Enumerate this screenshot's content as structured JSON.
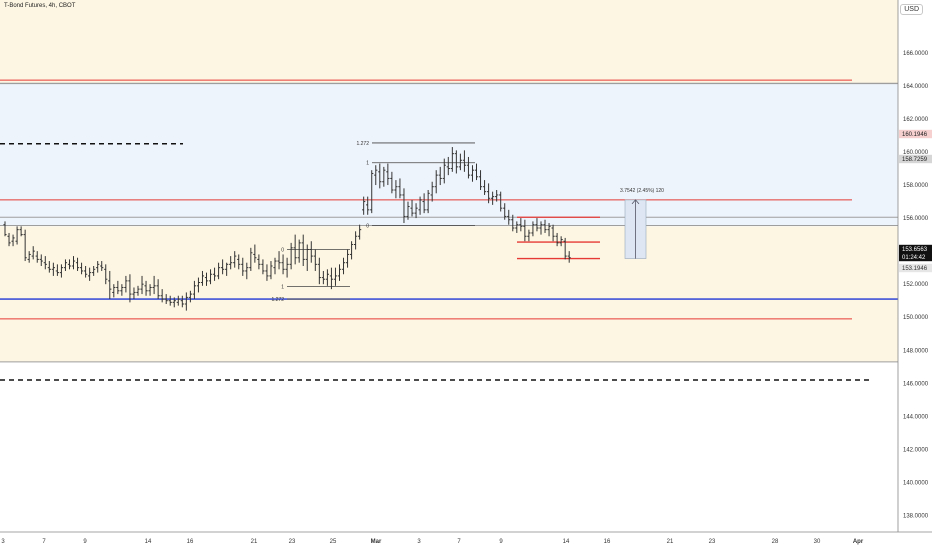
{
  "header": {
    "title": "T-Bond Futures, 4h, CBOT"
  },
  "currency_button": "USD",
  "colors": {
    "zone_cream": "#fdf6e3",
    "zone_blue": "#eef4fb",
    "red_line": "#e53935",
    "blue_line": "#1e36d6",
    "grey_line": "#9e9e9e",
    "candle": "#333333",
    "measure_fill": "#dde6f2"
  },
  "chart_data": {
    "type": "bar",
    "instrument": "T-Bond Futures",
    "interval": "4h",
    "exchange": "CBOT",
    "grid": false,
    "y_axis": {
      "position": "right",
      "range": [
        137,
        169.2
      ],
      "ticks": [
        "166.0000",
        "164.0000",
        "162.0000",
        "160.0000",
        "158.0000",
        "156.0000",
        "154.0000",
        "152.0000",
        "150.0000",
        "148.0000",
        "146.0000",
        "144.0000",
        "142.0000",
        "140.0000",
        "138.0000"
      ],
      "badges": [
        {
          "label": "160.1946",
          "value": 160.1946,
          "style": "pink"
        },
        {
          "label": "158.7259",
          "value": 158.7259,
          "style": "grey"
        },
        {
          "label": "153.6563",
          "value": 153.6563,
          "style": "dark"
        },
        {
          "label": "01:24:42",
          "value": 153.0,
          "style": "dark"
        },
        {
          "label": "153.1946",
          "value": 153.1946,
          "style": "light"
        }
      ]
    },
    "x_axis": {
      "ticks": [
        "3",
        "7",
        "9",
        "14",
        "16",
        "21",
        "23",
        "25",
        "Mar",
        "3",
        "7",
        "9",
        "14",
        "16",
        "21",
        "23",
        "28",
        "30",
        "Apr"
      ],
      "bold": [
        "Mar",
        "Apr"
      ]
    },
    "zones": [
      {
        "name": "upper-cream",
        "from": 164.15,
        "to": 169.2,
        "color": "cream"
      },
      {
        "name": "blue-band",
        "from": 155.5,
        "to": 164.15,
        "color": "blue"
      },
      {
        "name": "lower-cream",
        "from": 147.3,
        "to": 155.5,
        "color": "cream"
      }
    ],
    "levels": [
      {
        "value": 164.35,
        "color": "red"
      },
      {
        "value": 164.15,
        "color": "grey"
      },
      {
        "value": 157.1,
        "color": "red"
      },
      {
        "value": 156.05,
        "color": "grey"
      },
      {
        "value": 155.55,
        "color": "grey"
      },
      {
        "value": 151.1,
        "color": "blue"
      },
      {
        "value": 149.9,
        "color": "red"
      },
      {
        "value": 147.3,
        "color": "grey"
      }
    ],
    "dashed_levels": [
      {
        "value": 160.5,
        "x_end": 183
      },
      {
        "value": 146.2,
        "x_end": 870
      }
    ],
    "fib_labels": [
      "1.272",
      "1",
      "0",
      "0",
      "1",
      "1.272"
    ],
    "measure": {
      "label": "3.7542 (2.45%) 120",
      "from": 153.55,
      "to": 157.1
    },
    "candles": [
      [
        0,
        155.6,
        155.8,
        154.9,
        155.0
      ],
      [
        1,
        154.9,
        155.1,
        154.3,
        154.5
      ],
      [
        2,
        154.6,
        155.0,
        154.3,
        154.8
      ],
      [
        3,
        154.6,
        155.5,
        154.4,
        155.3
      ],
      [
        4,
        155.3,
        155.5,
        154.9,
        155.0
      ],
      [
        5,
        155.0,
        155.3,
        153.4,
        153.6
      ],
      [
        6,
        153.5,
        154.0,
        153.3,
        153.8
      ],
      [
        7,
        153.7,
        154.3,
        153.5,
        154.0
      ],
      [
        8,
        153.7,
        154.0,
        153.3,
        153.5
      ],
      [
        9,
        153.5,
        153.8,
        153.1,
        153.4
      ],
      [
        10,
        153.3,
        153.7,
        152.9,
        153.2
      ],
      [
        11,
        153.0,
        153.4,
        152.7,
        152.9
      ],
      [
        12,
        152.9,
        153.3,
        152.5,
        153.0
      ],
      [
        13,
        152.8,
        153.2,
        152.5,
        152.7
      ],
      [
        14,
        152.7,
        153.2,
        152.4,
        153.0
      ],
      [
        15,
        153.0,
        153.5,
        152.8,
        153.3
      ],
      [
        16,
        153.2,
        153.5,
        152.9,
        153.1
      ],
      [
        17,
        153.1,
        153.7,
        152.9,
        153.4
      ],
      [
        18,
        153.3,
        153.6,
        152.8,
        153.0
      ],
      [
        19,
        153.0,
        153.3,
        152.6,
        152.8
      ],
      [
        20,
        152.8,
        153.1,
        152.4,
        152.6
      ],
      [
        21,
        152.5,
        153.0,
        152.2,
        152.7
      ],
      [
        22,
        152.7,
        153.1,
        152.5,
        152.9
      ],
      [
        23,
        153.0,
        153.4,
        152.7,
        153.2
      ],
      [
        24,
        153.1,
        153.4,
        152.8,
        153.0
      ],
      [
        25,
        152.9,
        153.2,
        152.0,
        152.3
      ],
      [
        26,
        152.2,
        152.8,
        151.1,
        151.7
      ],
      [
        27,
        151.5,
        152.0,
        151.2,
        151.8
      ],
      [
        28,
        151.8,
        152.2,
        151.4,
        151.6
      ],
      [
        29,
        151.6,
        152.0,
        151.3,
        151.8
      ],
      [
        30,
        151.8,
        152.5,
        151.5,
        152.2
      ],
      [
        31,
        152.2,
        152.6,
        150.9,
        151.4
      ],
      [
        32,
        151.4,
        151.8,
        151.1,
        151.5
      ],
      [
        33,
        151.5,
        151.9,
        151.3,
        151.7
      ],
      [
        34,
        151.7,
        152.5,
        151.4,
        152.0
      ],
      [
        35,
        151.9,
        152.2,
        151.3,
        151.6
      ],
      [
        36,
        151.6,
        152.0,
        151.3,
        151.8
      ],
      [
        37,
        151.8,
        152.5,
        151.4,
        151.9
      ],
      [
        38,
        151.9,
        152.3,
        151.1,
        151.3
      ],
      [
        39,
        151.3,
        151.7,
        150.9,
        151.1
      ],
      [
        40,
        151.1,
        151.4,
        150.8,
        151.0
      ],
      [
        41,
        151.0,
        151.3,
        150.7,
        150.9
      ],
      [
        42,
        150.9,
        151.2,
        150.6,
        151.0
      ],
      [
        43,
        150.9,
        151.3,
        150.7,
        151.1
      ],
      [
        44,
        151.0,
        151.3,
        150.6,
        150.8
      ],
      [
        45,
        150.8,
        151.5,
        150.4,
        151.2
      ],
      [
        46,
        151.2,
        151.6,
        150.9,
        151.4
      ],
      [
        47,
        151.4,
        152.2,
        151.1,
        151.9
      ],
      [
        48,
        151.9,
        152.4,
        151.5,
        152.1
      ],
      [
        49,
        152.1,
        152.8,
        151.9,
        152.5
      ],
      [
        50,
        152.4,
        152.7,
        151.9,
        152.2
      ],
      [
        51,
        152.2,
        152.9,
        152.0,
        152.6
      ],
      [
        52,
        152.6,
        153.0,
        152.2,
        152.5
      ],
      [
        53,
        152.5,
        153.3,
        152.3,
        153.0
      ],
      [
        54,
        153.0,
        153.5,
        152.6,
        152.9
      ],
      [
        55,
        152.9,
        153.3,
        152.5,
        153.2
      ],
      [
        56,
        153.2,
        153.7,
        152.9,
        153.3
      ],
      [
        57,
        153.3,
        154.0,
        153.0,
        153.7
      ],
      [
        58,
        153.5,
        153.8,
        152.9,
        153.2
      ],
      [
        59,
        153.2,
        153.6,
        152.5,
        152.8
      ],
      [
        60,
        152.8,
        153.3,
        152.3,
        153.0
      ],
      [
        61,
        153.0,
        154.2,
        152.8,
        153.9
      ],
      [
        62,
        153.8,
        154.4,
        153.3,
        153.6
      ],
      [
        63,
        153.5,
        153.8,
        152.9,
        153.2
      ],
      [
        64,
        153.2,
        153.5,
        152.6,
        152.8
      ],
      [
        65,
        152.8,
        153.2,
        152.2,
        152.5
      ],
      [
        66,
        152.5,
        153.4,
        152.3,
        153.1
      ],
      [
        67,
        153.0,
        153.6,
        152.6,
        153.4
      ],
      [
        68,
        153.4,
        154.0,
        152.9,
        153.3
      ],
      [
        69,
        153.3,
        153.8,
        152.6,
        152.9
      ],
      [
        70,
        152.9,
        153.6,
        152.4,
        153.2
      ],
      [
        71,
        153.2,
        154.5,
        152.9,
        154.2
      ],
      [
        72,
        154.2,
        155.0,
        153.2,
        153.6
      ],
      [
        73,
        153.6,
        154.7,
        153.3,
        154.5
      ],
      [
        74,
        154.5,
        155.0,
        153.1,
        153.5
      ],
      [
        75,
        153.5,
        154.4,
        152.8,
        154.1
      ],
      [
        76,
        154.1,
        154.6,
        153.3,
        153.7
      ],
      [
        77,
        153.7,
        154.1,
        152.8,
        153.2
      ],
      [
        78,
        153.2,
        153.6,
        152.0,
        152.4
      ],
      [
        79,
        152.4,
        152.8,
        152.0,
        152.3
      ],
      [
        80,
        152.3,
        152.9,
        151.9,
        152.6
      ],
      [
        81,
        152.5,
        153.0,
        151.7,
        152.3
      ],
      [
        82,
        152.3,
        153.0,
        151.9,
        152.5
      ],
      [
        83,
        152.5,
        153.2,
        152.2,
        152.9
      ],
      [
        84,
        152.9,
        153.6,
        152.6,
        153.3
      ],
      [
        85,
        153.3,
        154.1,
        153.0,
        153.8
      ],
      [
        86,
        153.8,
        154.6,
        153.5,
        154.4
      ],
      [
        87,
        154.4,
        155.2,
        154.1,
        154.9
      ],
      [
        88,
        154.9,
        155.6,
        154.7,
        155.3
      ],
      [
        89,
        156.5,
        157.3,
        156.2,
        157.0
      ],
      [
        90,
        156.8,
        157.3,
        156.2,
        156.5
      ],
      [
        91,
        156.5,
        158.9,
        156.3,
        158.7
      ],
      [
        92,
        158.6,
        159.2,
        158.0,
        158.9
      ],
      [
        93,
        158.8,
        159.3,
        157.8,
        158.2
      ],
      [
        94,
        158.2,
        159.1,
        157.9,
        158.9
      ],
      [
        95,
        158.8,
        159.3,
        158.0,
        158.4
      ],
      [
        96,
        158.4,
        158.8,
        157.5,
        157.7
      ],
      [
        97,
        157.7,
        158.3,
        157.2,
        157.9
      ],
      [
        98,
        157.9,
        158.4,
        157.2,
        157.4
      ],
      [
        99,
        157.4,
        157.8,
        155.7,
        156.1
      ],
      [
        100,
        156.1,
        157.0,
        155.9,
        156.7
      ],
      [
        101,
        156.6,
        157.1,
        156.1,
        156.3
      ],
      [
        102,
        156.3,
        156.9,
        156.0,
        156.6
      ],
      [
        103,
        156.5,
        157.3,
        156.2,
        157.1
      ],
      [
        104,
        157.0,
        157.5,
        156.3,
        156.5
      ],
      [
        105,
        156.5,
        157.7,
        156.3,
        157.5
      ],
      [
        106,
        157.4,
        158.2,
        157.0,
        157.9
      ],
      [
        107,
        157.9,
        158.9,
        157.5,
        158.6
      ],
      [
        108,
        158.6,
        159.1,
        158.0,
        158.4
      ],
      [
        109,
        158.4,
        159.6,
        158.1,
        159.2
      ],
      [
        110,
        159.1,
        159.7,
        158.6,
        159.0
      ],
      [
        111,
        159.0,
        160.3,
        158.8,
        159.9
      ],
      [
        112,
        159.9,
        160.1,
        158.7,
        159.1
      ],
      [
        113,
        159.1,
        159.9,
        158.9,
        159.5
      ],
      [
        114,
        159.5,
        160.1,
        158.8,
        159.2
      ],
      [
        115,
        159.2,
        159.7,
        158.4,
        158.6
      ],
      [
        116,
        158.6,
        159.2,
        158.2,
        158.9
      ],
      [
        117,
        158.9,
        159.3,
        158.3,
        158.5
      ],
      [
        118,
        158.5,
        158.9,
        157.7,
        157.9
      ],
      [
        119,
        157.9,
        158.3,
        157.4,
        157.6
      ],
      [
        120,
        157.6,
        158.1,
        156.9,
        157.2
      ],
      [
        121,
        157.2,
        157.6,
        156.8,
        157.3
      ],
      [
        122,
        157.3,
        157.7,
        157.0,
        157.4
      ],
      [
        123,
        157.4,
        157.6,
        156.4,
        156.6
      ],
      [
        124,
        156.6,
        156.9,
        155.9,
        156.1
      ],
      [
        125,
        156.1,
        156.5,
        155.6,
        155.9
      ],
      [
        126,
        155.9,
        156.2,
        155.2,
        155.4
      ],
      [
        127,
        155.4,
        155.8,
        155.1,
        155.6
      ],
      [
        128,
        155.6,
        156.0,
        155.2,
        155.5
      ],
      [
        129,
        155.5,
        155.9,
        154.6,
        154.9
      ],
      [
        130,
        154.9,
        155.3,
        154.6,
        155.1
      ],
      [
        131,
        155.1,
        155.8,
        154.9,
        155.6
      ],
      [
        132,
        155.6,
        156.0,
        155.2,
        155.4
      ],
      [
        133,
        155.4,
        155.8,
        155.0,
        155.6
      ],
      [
        134,
        155.6,
        155.9,
        155.1,
        155.3
      ],
      [
        135,
        155.3,
        155.7,
        154.9,
        155.5
      ],
      [
        136,
        155.4,
        155.6,
        154.6,
        154.9
      ],
      [
        137,
        154.9,
        155.1,
        154.3,
        154.5
      ],
      [
        138,
        154.5,
        154.9,
        154.3,
        154.7
      ],
      [
        139,
        154.6,
        154.8,
        153.5,
        153.7
      ],
      [
        140,
        153.7,
        154.0,
        153.3,
        153.6
      ]
    ]
  }
}
